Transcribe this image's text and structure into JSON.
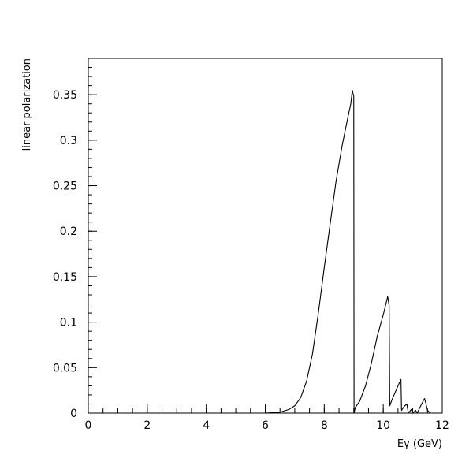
{
  "chart_data": {
    "type": "line",
    "title": "",
    "xlabel": "Eγ (GeV)",
    "ylabel": "linear polarization",
    "xlim": [
      0,
      12
    ],
    "ylim": [
      0,
      0.39
    ],
    "grid": false,
    "x_ticks": [
      {
        "value": 0,
        "label": "0"
      },
      {
        "value": 2,
        "label": "2"
      },
      {
        "value": 4,
        "label": "4"
      },
      {
        "value": 6,
        "label": "6"
      },
      {
        "value": 8,
        "label": "8"
      },
      {
        "value": 10,
        "label": "10"
      },
      {
        "value": 12,
        "label": "12"
      }
    ],
    "y_ticks": [
      {
        "value": 0,
        "label": "0"
      },
      {
        "value": 0.05,
        "label": "0.05"
      },
      {
        "value": 0.1,
        "label": "0.1"
      },
      {
        "value": 0.15,
        "label": "0.15"
      },
      {
        "value": 0.2,
        "label": "0.2"
      },
      {
        "value": 0.25,
        "label": "0.25"
      },
      {
        "value": 0.3,
        "label": "0.3"
      },
      {
        "value": 0.35,
        "label": "0.35"
      }
    ],
    "series": [
      {
        "color": "#000000",
        "points": [
          [
            0.0,
            0.0
          ],
          [
            6.0,
            0.0
          ],
          [
            6.5,
            0.001
          ],
          [
            6.8,
            0.004
          ],
          [
            7.0,
            0.008
          ],
          [
            7.2,
            0.017
          ],
          [
            7.4,
            0.035
          ],
          [
            7.6,
            0.065
          ],
          [
            7.8,
            0.11
          ],
          [
            8.0,
            0.16
          ],
          [
            8.2,
            0.208
          ],
          [
            8.4,
            0.255
          ],
          [
            8.6,
            0.293
          ],
          [
            8.8,
            0.325
          ],
          [
            8.9,
            0.34
          ],
          [
            8.95,
            0.355
          ],
          [
            9.0,
            0.348
          ],
          [
            9.01,
            0.0
          ],
          [
            9.05,
            0.006
          ],
          [
            9.2,
            0.013
          ],
          [
            9.4,
            0.03
          ],
          [
            9.6,
            0.055
          ],
          [
            9.8,
            0.085
          ],
          [
            10.0,
            0.108
          ],
          [
            10.15,
            0.128
          ],
          [
            10.2,
            0.118
          ],
          [
            10.22,
            0.008
          ],
          [
            10.3,
            0.015
          ],
          [
            10.5,
            0.03
          ],
          [
            10.6,
            0.037
          ],
          [
            10.62,
            0.003
          ],
          [
            10.7,
            0.007
          ],
          [
            10.8,
            0.01
          ],
          [
            10.85,
            0.0
          ],
          [
            10.95,
            0.004
          ],
          [
            11.0,
            0.0
          ],
          [
            11.1,
            0.003
          ],
          [
            11.15,
            0.0
          ],
          [
            11.3,
            0.01
          ],
          [
            11.4,
            0.016
          ],
          [
            11.45,
            0.01
          ],
          [
            11.5,
            0.003
          ],
          [
            11.6,
            0.0
          ],
          [
            12.0,
            0.0
          ]
        ]
      }
    ]
  }
}
